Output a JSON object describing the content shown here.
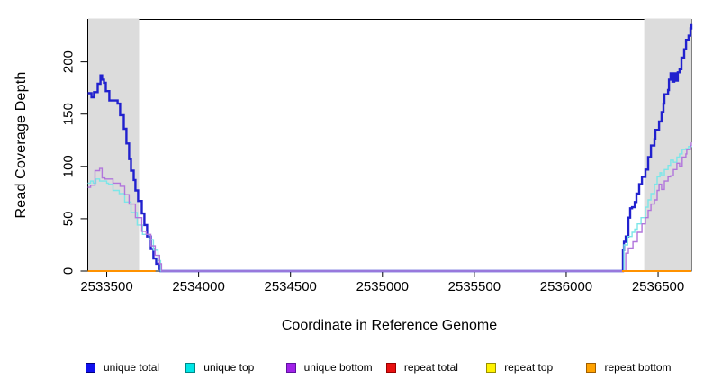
{
  "chart_data": {
    "type": "line",
    "title": "",
    "xlabel": "Coordinate in Reference Genome",
    "ylabel": "Read Coverage Depth",
    "xlim": [
      2533397,
      2536681
    ],
    "ylim": [
      0,
      241
    ],
    "x_ticks": [
      2533500,
      2534000,
      2534500,
      2535000,
      2535500,
      2536000,
      2536500
    ],
    "y_ticks": [
      0,
      50,
      100,
      150,
      200
    ],
    "grid": false,
    "legend_position": "bottom",
    "band_color": "#DCDCDC",
    "axis_color": "#000000",
    "repeat_region_bands": [
      {
        "x0": 2533397,
        "x1": 2533676
      },
      {
        "x0": 2536422,
        "x1": 2536681
      }
    ],
    "series": [
      {
        "name": "unique total",
        "line_color": "#2121CE",
        "width": 2.4,
        "segments": [
          [
            [
              2533397,
              170
            ],
            [
              2533417,
              166
            ],
            [
              2533431,
              171
            ],
            [
              2533451,
              179
            ],
            [
              2533466,
              187
            ],
            [
              2533475,
              183
            ],
            [
              2533485,
              180
            ],
            [
              2533495,
              172
            ],
            [
              2533514,
              163
            ],
            [
              2533549,
              163
            ],
            [
              2533559,
              160
            ],
            [
              2533573,
              149
            ],
            [
              2533593,
              136
            ],
            [
              2533607,
              122
            ],
            [
              2533622,
              107
            ],
            [
              2533632,
              96
            ],
            [
              2533647,
              87
            ],
            [
              2533656,
              77
            ],
            [
              2533671,
              67
            ],
            [
              2533691,
              55
            ],
            [
              2533705,
              44
            ],
            [
              2533720,
              33
            ],
            [
              2533740,
              21
            ],
            [
              2533754,
              12
            ],
            [
              2533769,
              7
            ],
            [
              2533788,
              2
            ],
            [
              2533793,
              0
            ],
            [
              2536304,
              0
            ],
            [
              2536309,
              20
            ],
            [
              2536314,
              28
            ],
            [
              2536324,
              33
            ],
            [
              2536338,
              51
            ],
            [
              2536348,
              60
            ],
            [
              2536358,
              61
            ],
            [
              2536373,
              66
            ],
            [
              2536382,
              74
            ],
            [
              2536397,
              83
            ],
            [
              2536412,
              90
            ],
            [
              2536431,
              97
            ],
            [
              2536446,
              109
            ],
            [
              2536461,
              120
            ],
            [
              2536480,
              126
            ],
            [
              2536485,
              135
            ],
            [
              2536505,
              143
            ],
            [
              2536519,
              152
            ],
            [
              2536529,
              160
            ],
            [
              2536534,
              169
            ],
            [
              2536554,
              173
            ],
            [
              2536559,
              183
            ],
            [
              2536568,
              189
            ],
            [
              2536578,
              181
            ],
            [
              2536588,
              189
            ],
            [
              2536598,
              182
            ],
            [
              2536607,
              190
            ],
            [
              2536617,
              193
            ],
            [
              2536627,
              204
            ],
            [
              2536642,
              212
            ],
            [
              2536652,
              221
            ],
            [
              2536666,
              225
            ],
            [
              2536676,
              232
            ],
            [
              2536681,
              236
            ]
          ]
        ]
      },
      {
        "name": "unique top",
        "line_color": "#7CE6E8",
        "width": 1.4,
        "segments": [
          [
            [
              2533397,
              84
            ],
            [
              2533412,
              86
            ],
            [
              2533426,
              84
            ],
            [
              2533441,
              88
            ],
            [
              2533461,
              86
            ],
            [
              2533485,
              86
            ],
            [
              2533500,
              84
            ],
            [
              2533510,
              83
            ],
            [
              2533534,
              77
            ],
            [
              2533568,
              74
            ],
            [
              2533598,
              66
            ],
            [
              2533632,
              56
            ],
            [
              2533666,
              44
            ],
            [
              2533695,
              35
            ],
            [
              2533730,
              30
            ],
            [
              2533754,
              20
            ],
            [
              2533779,
              10
            ],
            [
              2533793,
              0
            ],
            [
              2536304,
              0
            ],
            [
              2536314,
              25
            ],
            [
              2536334,
              33
            ],
            [
              2536358,
              37
            ],
            [
              2536373,
              40
            ],
            [
              2536387,
              45
            ],
            [
              2536407,
              51
            ],
            [
              2536431,
              61
            ],
            [
              2536446,
              68
            ],
            [
              2536461,
              74
            ],
            [
              2536480,
              83
            ],
            [
              2536495,
              90
            ],
            [
              2536510,
              94
            ],
            [
              2536519,
              91
            ],
            [
              2536534,
              97
            ],
            [
              2536554,
              101
            ],
            [
              2536568,
              106
            ],
            [
              2536583,
              104
            ],
            [
              2536602,
              109
            ],
            [
              2536617,
              112
            ],
            [
              2536631,
              116
            ],
            [
              2536651,
              117
            ],
            [
              2536666,
              119
            ],
            [
              2536681,
              120
            ]
          ]
        ]
      },
      {
        "name": "unique bottom",
        "line_color": "#B175DC",
        "width": 1.4,
        "segments": [
          [
            [
              2533397,
              80
            ],
            [
              2533412,
              82
            ],
            [
              2533436,
              96
            ],
            [
              2533461,
              98
            ],
            [
              2533475,
              89
            ],
            [
              2533490,
              88
            ],
            [
              2533510,
              88
            ],
            [
              2533534,
              84
            ],
            [
              2533573,
              81
            ],
            [
              2533598,
              73
            ],
            [
              2533622,
              64
            ],
            [
              2533656,
              51
            ],
            [
              2533691,
              38
            ],
            [
              2533715,
              35
            ],
            [
              2533740,
              24
            ],
            [
              2533764,
              15
            ],
            [
              2533788,
              7
            ],
            [
              2533798,
              0
            ],
            [
              2536309,
              0
            ],
            [
              2536324,
              17
            ],
            [
              2536338,
              22
            ],
            [
              2536363,
              28
            ],
            [
              2536387,
              37
            ],
            [
              2536412,
              45
            ],
            [
              2536431,
              51
            ],
            [
              2536446,
              58
            ],
            [
              2536461,
              64
            ],
            [
              2536480,
              68
            ],
            [
              2536495,
              77
            ],
            [
              2536505,
              83
            ],
            [
              2536519,
              78
            ],
            [
              2536534,
              86
            ],
            [
              2536554,
              90
            ],
            [
              2536568,
              91
            ],
            [
              2536583,
              97
            ],
            [
              2536602,
              103
            ],
            [
              2536617,
              100
            ],
            [
              2536631,
              109
            ],
            [
              2536651,
              112
            ],
            [
              2536656,
              116
            ],
            [
              2536676,
              120
            ],
            [
              2536681,
              123
            ]
          ]
        ]
      },
      {
        "name": "repeat total",
        "line_color": "#DE0000",
        "width": 2,
        "segments": [
          [
            [
              2533397,
              0
            ],
            [
              2533765,
              0
            ]
          ],
          [
            [
              2536304,
              0
            ],
            [
              2536681,
              0
            ]
          ]
        ]
      },
      {
        "name": "repeat top",
        "line_color": "#FFE500",
        "width": 2,
        "segments": [
          [
            [
              2533397,
              0
            ],
            [
              2533765,
              0
            ]
          ],
          [
            [
              2536304,
              0
            ],
            [
              2536681,
              0
            ]
          ]
        ]
      },
      {
        "name": "repeat bottom",
        "line_color": "#FF9200",
        "width": 2,
        "segments": [
          [
            [
              2533397,
              0
            ],
            [
              2533765,
              0
            ]
          ],
          [
            [
              2536304,
              0
            ],
            [
              2536681,
              0
            ]
          ]
        ]
      }
    ],
    "legend": [
      {
        "label": "unique total",
        "fill": "#1111EE",
        "border": "#000080"
      },
      {
        "label": "unique top",
        "fill": "#00E6E6",
        "border": "#008888"
      },
      {
        "label": "unique bottom",
        "fill": "#A122E8",
        "border": "#5E12A0"
      },
      {
        "label": "repeat total",
        "fill": "#E81010",
        "border": "#990000"
      },
      {
        "label": "repeat top",
        "fill": "#FFF200",
        "border": "#998F00"
      },
      {
        "label": "repeat bottom",
        "fill": "#FFA200",
        "border": "#A05E00"
      }
    ]
  }
}
